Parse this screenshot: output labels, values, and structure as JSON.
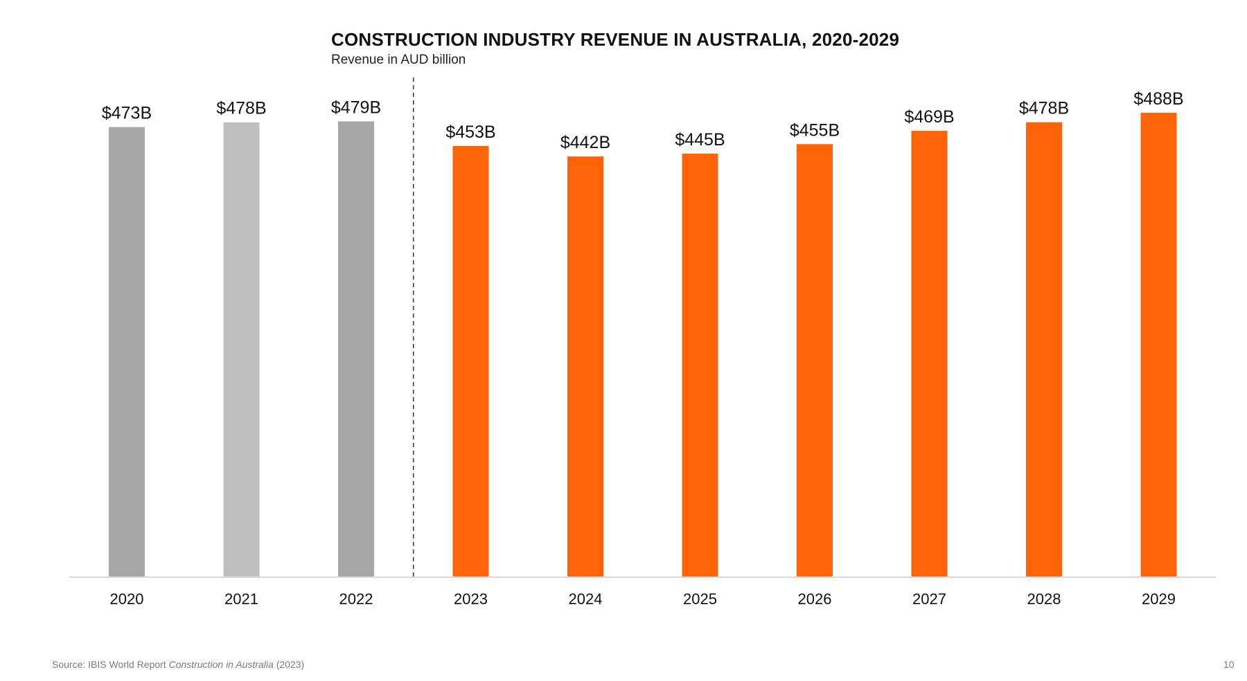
{
  "chart_data": {
    "type": "bar",
    "title": "CONSTRUCTION INDUSTRY REVENUE IN AUSTRALIA, 2020-2029",
    "subtitle": "Revenue in AUD billion",
    "categories": [
      "2020",
      "2021",
      "2022",
      "2023",
      "2024",
      "2025",
      "2026",
      "2027",
      "2028",
      "2029"
    ],
    "values": [
      473,
      478,
      479,
      453,
      442,
      445,
      455,
      469,
      478,
      488
    ],
    "data_labels": [
      "$473B",
      "$478B",
      "$479B",
      "$453B",
      "$442B",
      "$445B",
      "$455B",
      "$469B",
      "$478B",
      "$488B"
    ],
    "bar_colors": [
      "#a6a6a6",
      "#bfbfbf",
      "#a6a6a6",
      "#ff6309",
      "#ff6309",
      "#ff6309",
      "#ff6309",
      "#ff6309",
      "#ff6309",
      "#ff6309"
    ],
    "ylim": [
      0,
      488
    ],
    "xlabel": "",
    "ylabel": "",
    "grid": false,
    "y_axis_visible": false,
    "divider": {
      "between": [
        "2022",
        "2023"
      ],
      "style": "dashed"
    },
    "label_color": "#111111",
    "axis_color": "#d9d9d9"
  },
  "footer": {
    "source_prefix": "Source: IBIS World Report ",
    "source_title": "Construction in Australia",
    "source_suffix": " (2023)",
    "page_number": "10"
  }
}
